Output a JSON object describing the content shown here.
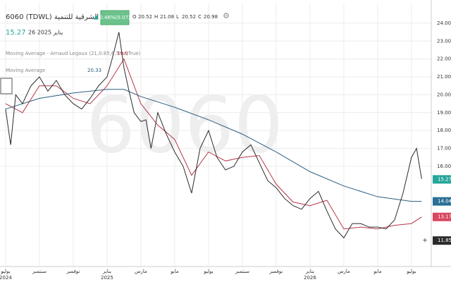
{
  "chart_data": {
    "type": "line",
    "title": "6060 (TDWL) الشرقية للتنمية",
    "change": "0.46%(0.07)",
    "ohlc": [
      {
        "label": "O",
        "value": 20.52
      },
      {
        "label": "H",
        "value": 21.08
      },
      {
        "label": "L",
        "value": 20.52
      },
      {
        "label": "C",
        "value": 20.98
      }
    ],
    "last": 15.27,
    "date": "26 يناير 2025",
    "watermark": "6060",
    "color": "#2b2b2b",
    "x": [
      0,
      0.3,
      0.6,
      1,
      1.5,
      2,
      2.5,
      3,
      3.5,
      4,
      4.5,
      5,
      5.5,
      6,
      6.3,
      6.7,
      7,
      7.3,
      7.6,
      8,
      8.3,
      8.6,
      9,
      9.5,
      10,
      10.5,
      11,
      11.5,
      12,
      12.5,
      13,
      13.5,
      14,
      14.5,
      15,
      15.5,
      16,
      16.5,
      17,
      17.5,
      18,
      18.5,
      19,
      19.5,
      20,
      20.5,
      21,
      21.5,
      22,
      22.5,
      23,
      23.5,
      24,
      24.3,
      24.6
    ],
    "values": [
      19.2,
      17.2,
      20.0,
      19.5,
      20.5,
      21.0,
      20.2,
      20.8,
      20.0,
      19.5,
      19.2,
      19.8,
      20.5,
      21.0,
      22.0,
      23.5,
      21.5,
      20.2,
      19.0,
      18.5,
      18.6,
      17.0,
      19.0,
      17.8,
      16.8,
      16.0,
      14.5,
      17.0,
      18.0,
      16.5,
      15.8,
      16.0,
      16.8,
      17.2,
      16.2,
      15.2,
      14.8,
      14.2,
      13.8,
      13.6,
      14.2,
      14.6,
      13.5,
      12.5,
      12.0,
      12.8,
      12.8,
      12.6,
      12.6,
      12.5,
      13.0,
      14.5,
      16.5,
      17.0,
      15.3
    ],
    "series": [
      {
        "name": "Moving Average - Arnaud Legoux (21,0.85,6,True,True)",
        "value_label": "19.9",
        "color": "#b5384b",
        "x": [
          0,
          1,
          2,
          3,
          4,
          5,
          6,
          7,
          8,
          9,
          10,
          11,
          12,
          13,
          14,
          15,
          16,
          17,
          18,
          19,
          20,
          21,
          22,
          23,
          24,
          24.6
        ],
        "values": [
          19.5,
          19.0,
          20.5,
          20.5,
          19.8,
          19.5,
          20.5,
          22.0,
          19.5,
          18.3,
          17.5,
          15.5,
          16.8,
          16.3,
          16.5,
          16.6,
          15.0,
          14.0,
          13.8,
          14.1,
          12.5,
          12.6,
          12.5,
          12.7,
          12.8,
          13.17
        ]
      },
      {
        "name": "Moving Average",
        "value_label": "20.33",
        "color": "#2a5d80",
        "x": [
          0,
          2,
          4,
          6,
          7,
          8,
          10,
          12,
          14,
          16,
          18,
          20,
          22,
          24,
          24.6
        ],
        "values": [
          19.2,
          19.8,
          20.1,
          20.3,
          20.3,
          19.9,
          19.3,
          18.6,
          17.8,
          16.8,
          15.7,
          14.9,
          14.3,
          14.04,
          14.04
        ]
      }
    ],
    "price_labels": [
      {
        "value": 15.27,
        "color": "#26a69a"
      },
      {
        "value": 14.04,
        "color": "#2a6f97"
      },
      {
        "value": 13.17,
        "color": "#d9465f"
      },
      {
        "value": 11.85,
        "color": "#2b2b2b"
      }
    ],
    "xlim": [
      -0.33,
      25.17
    ],
    "xticks": [
      {
        "value": 0,
        "label": "يوليو",
        "year": "2024"
      },
      {
        "value": 2,
        "label": "سبتمبر"
      },
      {
        "value": 4,
        "label": "نوفمبر"
      },
      {
        "value": 6,
        "label": "يناير",
        "year": "2025"
      },
      {
        "value": 8,
        "label": "مارس"
      },
      {
        "value": 10,
        "label": "مايو"
      },
      {
        "value": 12,
        "label": "يوليو"
      },
      {
        "value": 14,
        "label": "سبتمبر"
      },
      {
        "value": 16,
        "label": "نوفمبر"
      },
      {
        "value": 18,
        "label": "يناير",
        "year": "2026"
      },
      {
        "value": 20,
        "label": "مارس"
      },
      {
        "value": 22,
        "label": "مايو"
      },
      {
        "value": 24,
        "label": "يوليو"
      }
    ],
    "ylim": [
      10.4,
      25.1
    ],
    "yticks": [
      {
        "value": 16,
        "label": "16.00"
      },
      {
        "value": 17,
        "label": "17.00"
      },
      {
        "value": 18,
        "label": "18.00"
      },
      {
        "value": 19,
        "label": "19.00"
      },
      {
        "value": 20,
        "label": "20.00"
      },
      {
        "value": 21,
        "label": "21.00"
      },
      {
        "value": 22,
        "label": "22.00"
      },
      {
        "value": 23,
        "label": "23.00"
      },
      {
        "value": 24,
        "label": "24.00"
      }
    ],
    "grid": true
  }
}
